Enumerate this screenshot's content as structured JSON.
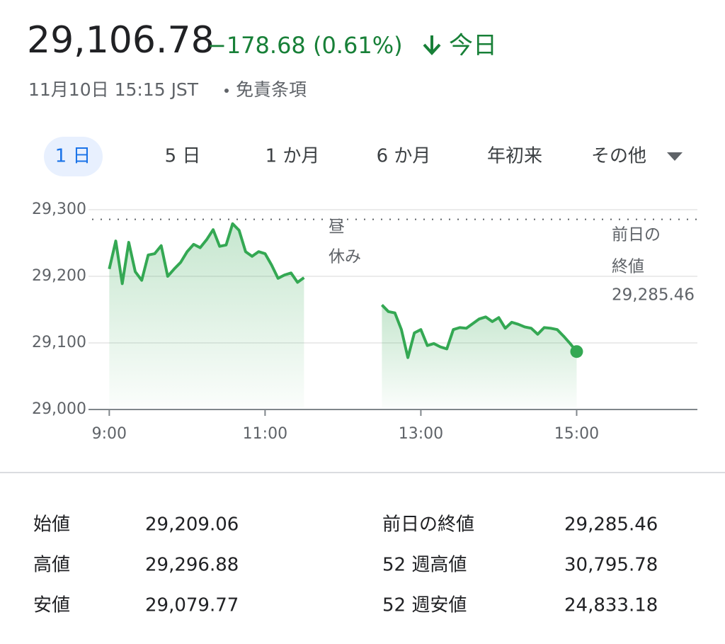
{
  "header": {
    "price": "29,106.78",
    "change": "−178.68 (0.61%)",
    "period": "今日",
    "timestamp": "11月10日 15:15 JST",
    "disclaimer": "免責条項"
  },
  "tabs": [
    "1 日",
    "5 日",
    "1 か月",
    "6 か月",
    "年初来",
    "その他"
  ],
  "chart_data": {
    "type": "line",
    "color": "#34a853",
    "x": [
      540,
      545,
      550,
      555,
      560,
      565,
      570,
      575,
      580,
      585,
      590,
      595,
      600,
      605,
      610,
      615,
      620,
      625,
      630,
      635,
      640,
      645,
      650,
      655,
      660,
      665,
      670,
      675,
      680,
      685,
      690,
      720,
      750,
      755,
      760,
      765,
      770,
      775,
      780,
      785,
      790,
      795,
      800,
      805,
      810,
      815,
      820,
      825,
      830,
      835,
      840,
      845,
      850,
      855,
      860,
      865,
      870,
      875,
      880,
      885,
      890,
      895,
      900
    ],
    "values": [
      29211,
      29253,
      29189,
      29251,
      29207,
      29194,
      29232,
      29234,
      29246,
      29200,
      29211,
      29221,
      29237,
      29248,
      29243,
      29255,
      29270,
      29245,
      29247,
      29279,
      29269,
      29237,
      29230,
      29237,
      29234,
      29217,
      29197,
      29202,
      29205,
      29191,
      29198,
      null,
      29157,
      29147,
      29145,
      29120,
      29078,
      29115,
      29120,
      29096,
      29099,
      29094,
      29091,
      29120,
      29123,
      29122,
      29129,
      29136,
      29139,
      29132,
      29138,
      29122,
      29131,
      29128,
      29124,
      29122,
      29113,
      29123,
      29122,
      29120,
      29110,
      29099,
      29087
    ],
    "xlim": [
      524,
      993
    ],
    "xticks": [
      {
        "value": 540,
        "label": "9:00"
      },
      {
        "value": 660,
        "label": "11:00"
      },
      {
        "value": 780,
        "label": "13:00"
      },
      {
        "value": 900,
        "label": "15:00"
      }
    ],
    "ylim": [
      29000,
      29300
    ],
    "yticks": [
      {
        "value": 29000,
        "label": "29,000"
      },
      {
        "value": 29100,
        "label": "29,100"
      },
      {
        "value": 29200,
        "label": "29,200"
      },
      {
        "value": 29300,
        "label": "29,300"
      }
    ],
    "grid": true,
    "prev_close": {
      "value": 29285.46,
      "label": "29,285.46"
    },
    "annotations": {
      "lunch": [
        "昼",
        "休み"
      ],
      "prev_close_title": [
        "前日の",
        "終値"
      ]
    }
  },
  "stats": [
    [
      "始値",
      "29,209.06"
    ],
    [
      "高値",
      "29,296.88"
    ],
    [
      "安値",
      "29,079.77"
    ],
    [
      "前日の終値",
      "29,285.46"
    ],
    [
      "52 週高値",
      "30,795.78"
    ],
    [
      "52 週安値",
      "24,833.18"
    ]
  ]
}
